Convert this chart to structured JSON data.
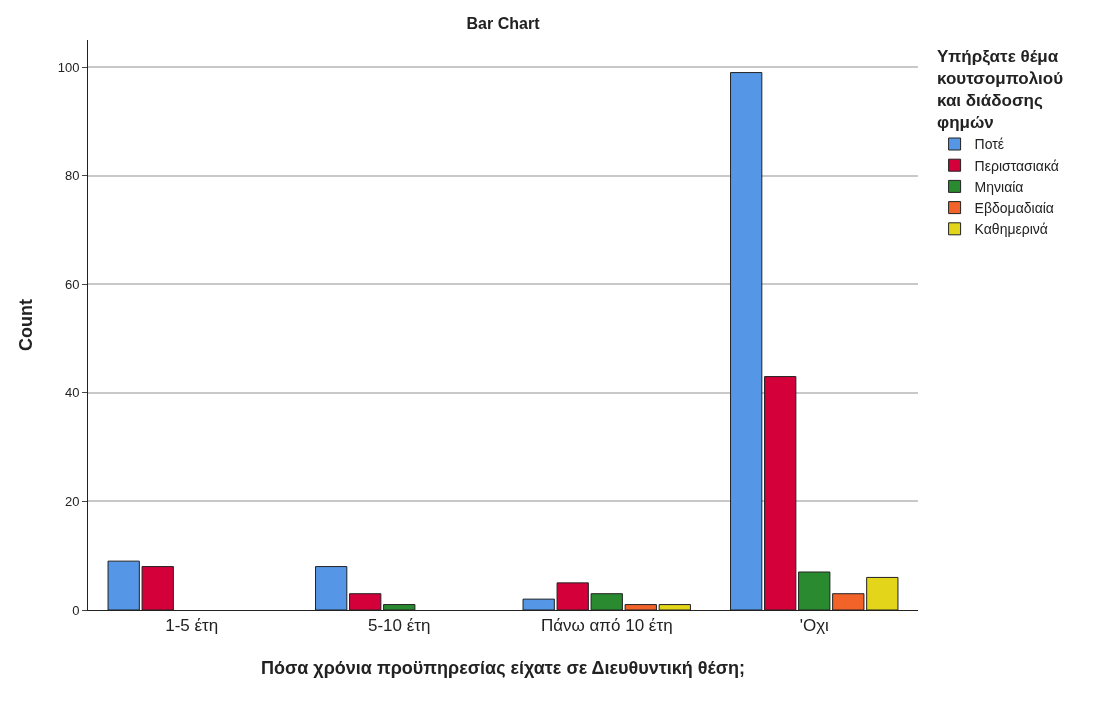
{
  "chart_data": {
    "type": "bar",
    "title": "Bar Chart",
    "xlabel": "Πόσα χρόνια προϋπηρεσίας είχατε σε Διευθυντική θέση;",
    "ylabel": "Count",
    "legend_title": "Υπήρξατε θέμα κουτσομπολιού και διάδοσης φημών",
    "categories": [
      "1-5 έτη",
      "5-10 έτη",
      "Πάνω από 10 έτη",
      "'Οχι"
    ],
    "series": [
      {
        "name": "Ποτέ",
        "color": "#5597e6",
        "values": [
          9,
          8,
          2,
          99
        ]
      },
      {
        "name": "Περιστασιακά",
        "color": "#d4003a",
        "values": [
          8,
          3,
          5,
          43
        ]
      },
      {
        "name": "Μηνιαία",
        "color": "#2a8a30",
        "values": [
          null,
          1,
          3,
          7
        ]
      },
      {
        "name": "Εβδομαδιαία",
        "color": "#f2632a",
        "values": [
          null,
          null,
          1,
          3
        ]
      },
      {
        "name": "Καθημερινά",
        "color": "#e3d61a",
        "values": [
          null,
          null,
          1,
          6
        ]
      }
    ],
    "ylim": [
      0,
      105
    ],
    "yticks": [
      0,
      20,
      40,
      60,
      80,
      100
    ],
    "grid": "y",
    "legend": "top right"
  }
}
